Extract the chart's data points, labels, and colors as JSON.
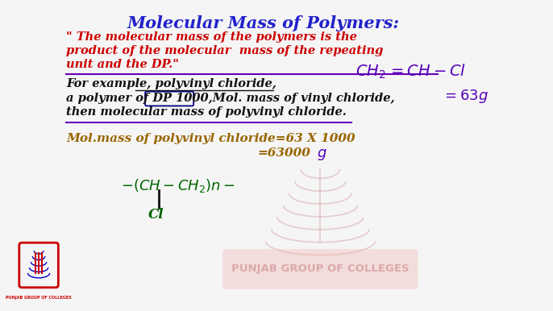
{
  "bg_color": "#f5f5f5",
  "title": "Molecular Mass of Polymers:",
  "title_color": "#2222cc",
  "quote_lines": [
    "\" The molecular mass of the polymers is the",
    "product of the molecular  mass of the repeating",
    "unit and the DP.\""
  ],
  "quote_color": "#cc0000",
  "example_line1": "For example, polyvinyl chloride,",
  "example_line2": "a polymer of DP 1000,Mol. mass of vinyl chloride,",
  "example_line3": "then molecular mass of polyvinyl chloride.",
  "example_color": "#111111",
  "handwritten_color": "#5500bb",
  "mol_mass_line1": "Mol.mass of polyvinyl chloride=63 X 1000",
  "mol_mass_line2": "=63000",
  "mol_mass_color": "#996600",
  "struct_color": "#006600",
  "watermark_text": "PUNJAB GROUP OF COLLEGES",
  "watermark_color": "#e8b0b0"
}
